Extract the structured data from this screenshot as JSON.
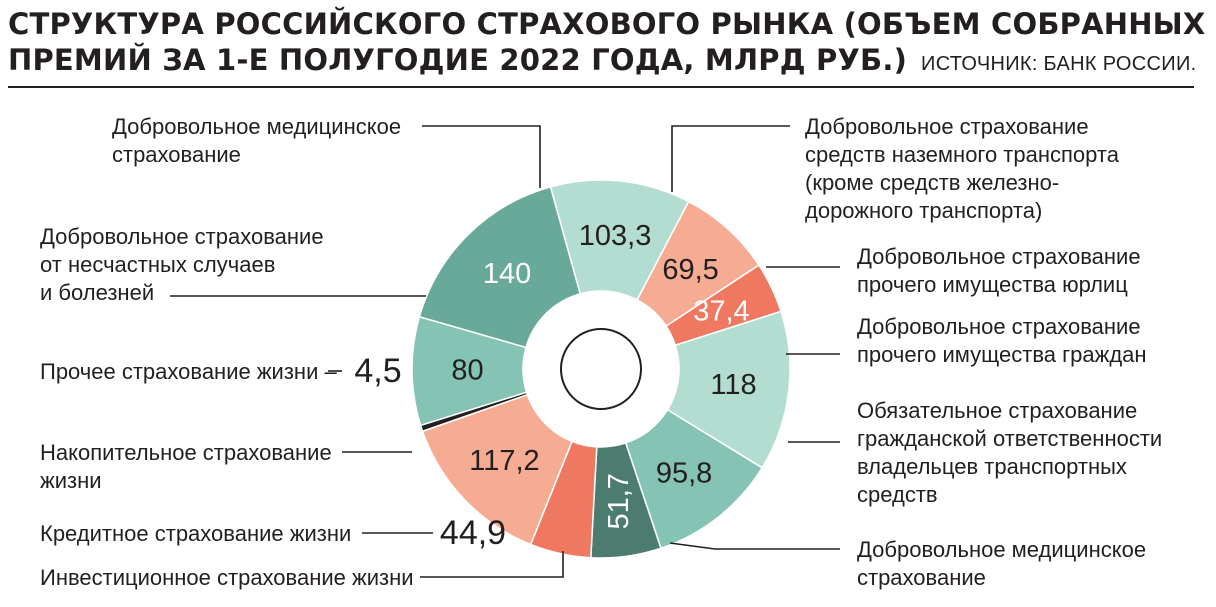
{
  "title": {
    "line1": "СТРУКТУРА РОССИЙСКОГО СТРАХОВОГО РЫНКА (ОБЪЕМ СОБРАННЫХ",
    "line2": "ПРЕМИЙ ЗА 1-Е ПОЛУГОДИЕ 2022 ГОДА, МЛРД РУБ.)",
    "source": "ИСТОЧНИК: БАНК РОССИИ."
  },
  "chart_data": {
    "type": "pie",
    "title": "СТРУКТУРА РОССИЙСКОГО СТРАХОВОГО РЫНКА (ОБЪЕМ СОБРАННЫХ ПРЕМИЙ ЗА 1-Е ПОЛУГОДИЕ 2022 ГОДА, МЛРД РУБ.)",
    "donut": true,
    "slices": [
      {
        "label": "Добровольное страхование средств наземного транспорта (кроме средств железно-дорожного транспорта)",
        "value": 103.3,
        "display": "103,3",
        "color": "#b4ddd2"
      },
      {
        "label": "Добровольное страхование прочего имущества юрлиц",
        "value": 69.5,
        "display": "69,5",
        "color": "#f6ab93"
      },
      {
        "label": "Добровольное страхование прочего имущества граждан",
        "value": 37.4,
        "display": "37,4",
        "color": "#ef7860"
      },
      {
        "label": "Обязательное страхование гражданской ответственности владельцев транспортных средств",
        "value": 118,
        "display": "118",
        "color": "#b4ddd2"
      },
      {
        "label": "Добровольное медицинское страхование",
        "value": 95.8,
        "display": "95,8",
        "color": "#85c4b5"
      },
      {
        "label": "Инвестиционное страхование жизни",
        "value": 51.7,
        "display": "51,7",
        "color": "#4c7c70"
      },
      {
        "label": "Кредитное страхование жизни",
        "value": 44.9,
        "display": "44,9",
        "color": "#ef7860"
      },
      {
        "label": "Накопительное страхование жизни",
        "value": 117.2,
        "display": "117,2",
        "color": "#f6ab93"
      },
      {
        "label": "Прочее страхование жизни",
        "value": 4.5,
        "display": "4,5",
        "color": "#231f20"
      },
      {
        "label": "Добровольное страхование от несчастных случаев и болезней",
        "value": 80,
        "display": "80",
        "color": "#85c4b5"
      },
      {
        "label": "Добровольное медицинское страхование",
        "value": 140,
        "display": "140",
        "color": "#69a99a"
      }
    ]
  },
  "labels": {
    "med_top": [
      "Добровольное медицинское",
      "страхование"
    ],
    "accidents": [
      "Добровольное страхование",
      "от несчастных случаев",
      "и болезней"
    ],
    "other_life": [
      "Прочее страхование жизни –"
    ],
    "savings": [
      "Накопительное страхование",
      "жизни"
    ],
    "credit": [
      "Кредитное страхование жизни"
    ],
    "investment": [
      "Инвестиционное страхование жизни"
    ],
    "land_transport": [
      "Добровольное страхование",
      "средств наземного транспорта",
      "(кроме средств железно-",
      "дорожного транспорта)"
    ],
    "property_corp": [
      "Добровольное страхование",
      "прочего имущества юрлиц"
    ],
    "property_citizens": [
      "Добровольное страхование",
      "прочего имущества граждан"
    ],
    "osago": [
      "Обязательное страхование",
      "гражданской ответственности",
      "владельцев транспортных",
      "средств"
    ],
    "med_bottom": [
      "Добровольное медицинское",
      "страхование"
    ]
  }
}
